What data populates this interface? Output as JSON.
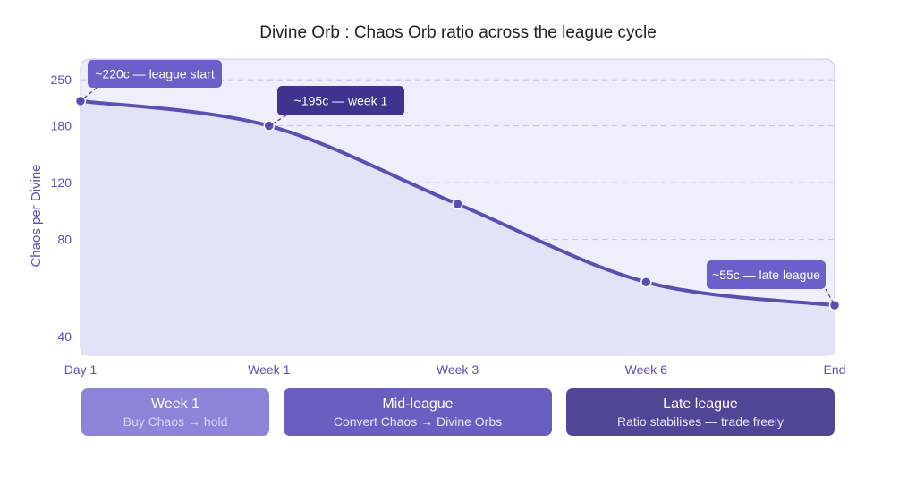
{
  "chart_data": {
    "type": "area",
    "title": "Divine Orb : Chaos Orb ratio across the league cycle",
    "xlabel": "",
    "ylabel": "Chaos per Divine",
    "x_ticks": [
      "Day 1",
      "Week 1",
      "Week 3",
      "Week 6",
      "End"
    ],
    "y_ticks": [
      40,
      80,
      120,
      180,
      250
    ],
    "y_scale": "log",
    "ylim": [
      35,
      290
    ],
    "grid": "horizontal dashed",
    "legend": "none",
    "series": [
      {
        "points": [
          {
            "x": "Day 1",
            "y": 215
          },
          {
            "x": "Week 1",
            "y": 180
          },
          {
            "x": "Week 3",
            "y": 103
          },
          {
            "x": "Week 6",
            "y": 59
          },
          {
            "x": "End",
            "y": 50
          }
        ]
      }
    ],
    "annotations": [
      {
        "text": "~220c — league start",
        "x": "Day 1"
      },
      {
        "text": "~195c — week 1",
        "x": "Week 1"
      },
      {
        "text": "~55c — late league",
        "x": "End"
      }
    ]
  },
  "phases": [
    {
      "title": "Week 1",
      "subtitle": "Buy Chaos → hold"
    },
    {
      "title": "Mid-league",
      "subtitle": "Convert Chaos → Divine Orbs"
    },
    {
      "title": "Late league",
      "subtitle": "Ratio stabilises — trade freely"
    }
  ],
  "colors": {
    "line": "#5a4fb2",
    "area": "#e2e0f6",
    "plot_bg": "#f0eefc",
    "grid": "#c4bfe6",
    "ann_light": "#6c5fc9",
    "ann_dark": "#3f338e",
    "phase1": "#8d83d8",
    "phase2": "#6a5fc1",
    "phase3": "#514595"
  }
}
